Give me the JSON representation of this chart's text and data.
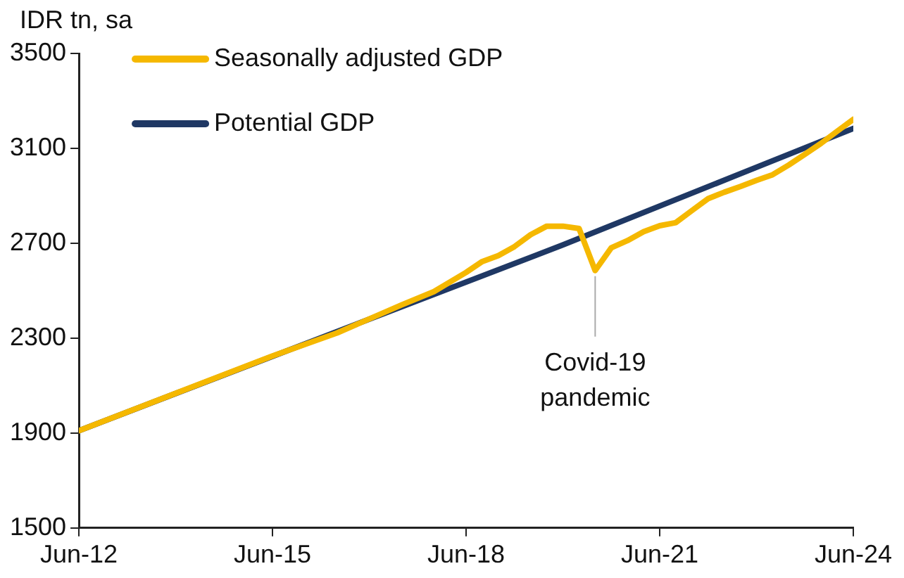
{
  "chart_data": {
    "type": "line",
    "ylabel": "IDR tn, sa",
    "series": [
      {
        "name": "Seasonally adjusted GDP",
        "color": "#f5b800",
        "x": [
          "2012-06",
          "2015-06",
          "2016-06",
          "2017-06",
          "2017-12",
          "2018-06",
          "2018-09",
          "2018-12",
          "2019-03",
          "2019-06",
          "2019-09",
          "2019-12",
          "2020-03",
          "2020-06",
          "2020-09",
          "2020-12",
          "2021-03",
          "2021-06",
          "2021-09",
          "2021-12",
          "2022-03",
          "2022-06",
          "2022-09",
          "2022-12",
          "2023-03",
          "2023-06",
          "2023-09",
          "2023-12",
          "2024-03",
          "2024-06"
        ],
        "values": [
          1910,
          2225,
          2322,
          2440,
          2496,
          2577,
          2623,
          2648,
          2686,
          2736,
          2772,
          2772,
          2762,
          2585,
          2681,
          2711,
          2749,
          2774,
          2787,
          2838,
          2888,
          2915,
          2939,
          2965,
          2989,
          3030,
          3075,
          3121,
          3172,
          3222
        ]
      },
      {
        "name": "Potential GDP",
        "color": "#1f3864",
        "x": [
          "2012-06",
          "2019-12",
          "2024-06"
        ],
        "values": [
          1910,
          2693,
          3184
        ]
      }
    ],
    "xlim": [
      "2012-06",
      "2024-06"
    ],
    "xticks": [
      {
        "value": "2012-06",
        "label": "Jun-12"
      },
      {
        "value": "2015-06",
        "label": "Jun-15"
      },
      {
        "value": "2018-06",
        "label": "Jun-18"
      },
      {
        "value": "2021-06",
        "label": "Jun-21"
      },
      {
        "value": "2024-06",
        "label": "Jun-24"
      }
    ],
    "ylim": [
      1500,
      3500
    ],
    "yticks": [
      1500,
      1900,
      2300,
      2700,
      3100,
      3500
    ],
    "grid": false,
    "legend": "top left",
    "marker": "none",
    "line_style": "solid",
    "annotations": [
      {
        "text": "Covid-19\npandemic",
        "x": "2020-06",
        "y": 2585
      }
    ]
  }
}
